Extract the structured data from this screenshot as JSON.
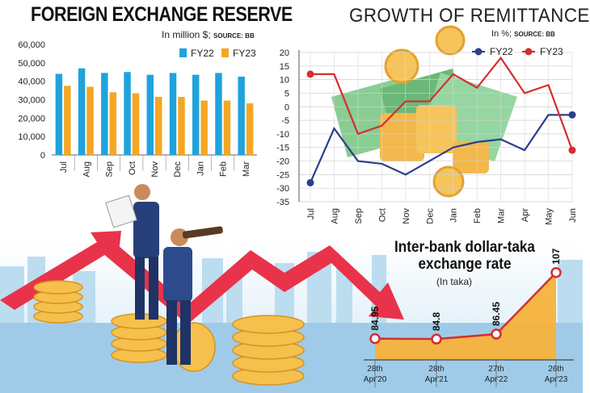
{
  "fx_reserve": {
    "title": "FOREIGN EXCHANGE RESERVE",
    "unit": "In million $;",
    "source": "SOURCE: BB",
    "colors": {
      "FY22": "#1fa3dc",
      "FY23": "#f5a623"
    }
  },
  "remittance": {
    "title": "GROWTH OF REMITTANCE",
    "unit": "In %;",
    "source": "SOURCE: BB",
    "colors": {
      "FY22": "#2b3f8c",
      "FY23": "#d32f2f"
    }
  },
  "exchange_rate": {
    "title_line1": "Inter-bank dollar-taka",
    "title_line2": "exchange rate",
    "unit": "(In taka)",
    "colors": {
      "fill": "#f7b23b",
      "line": "#d32f2f"
    }
  },
  "chart_data": [
    {
      "type": "bar",
      "title": "FOREIGN EXCHANGE RESERVE",
      "categories": [
        "Jul",
        "Aug",
        "Sep",
        "Oct",
        "Nov",
        "Dec",
        "Jan",
        "Feb",
        "Mar"
      ],
      "series": [
        {
          "name": "FY22",
          "values": [
            44000,
            47000,
            44500,
            45000,
            43500,
            44500,
            43500,
            44500,
            42500
          ]
        },
        {
          "name": "FY23",
          "values": [
            37500,
            37000,
            34000,
            33500,
            31500,
            31500,
            29500,
            29500,
            28000
          ]
        }
      ],
      "yticks": [
        "0",
        "10,000",
        "20,000",
        "30,000",
        "40,000",
        "50,000",
        "60,000"
      ],
      "ylim": [
        0,
        60000
      ],
      "grid": false,
      "legend": "top-right"
    },
    {
      "type": "line",
      "title": "GROWTH OF REMITTANCE",
      "categories": [
        "Jul",
        "Aug",
        "Sep",
        "Oct",
        "Nov",
        "Dec",
        "Jan",
        "Feb",
        "Mar",
        "Apr",
        "May",
        "Jun"
      ],
      "series": [
        {
          "name": "FY22",
          "values": [
            -28,
            -8,
            -20,
            -21,
            -25,
            -20,
            -15,
            -13,
            -12,
            -16,
            -3,
            -3
          ]
        },
        {
          "name": "FY23",
          "values": [
            12,
            12,
            -10,
            -7,
            2,
            2,
            12,
            7,
            18,
            5,
            8,
            -16
          ]
        }
      ],
      "yticks": [
        "20",
        "15",
        "10",
        "5",
        "0",
        "-5",
        "-10",
        "-15",
        "-20",
        "-25",
        "-30",
        "-35"
      ],
      "ylim": [
        -35,
        20
      ],
      "grid": true,
      "legend": "top-right"
    },
    {
      "type": "area",
      "title": "Inter-bank dollar-taka exchange rate",
      "categories": [
        "28th\nApr'20",
        "28th\nApr'21",
        "27th\nApr'22",
        "26th\nApr'23"
      ],
      "values": [
        84.95,
        84.8,
        86.45,
        107
      ],
      "value_labels": [
        "84.95",
        "84.8",
        "86.45",
        "107"
      ]
    }
  ]
}
